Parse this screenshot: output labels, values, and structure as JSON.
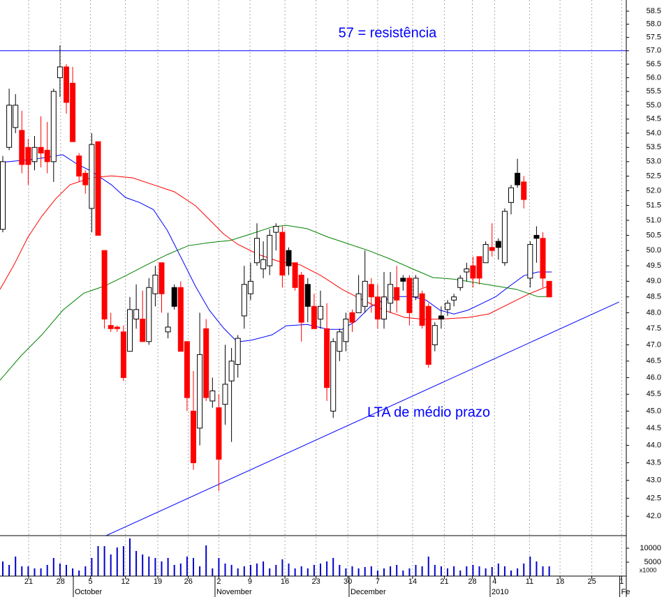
{
  "chart_data": {
    "type": "candlestick",
    "log_scale": true,
    "grid": true,
    "xlim": [
      -0.44,
      98.13
    ],
    "ylim": [
      41.47,
      58.93
    ],
    "yticks": [
      {
        "value": 42,
        "label": "42.0"
      },
      42.5,
      {
        "value": 43,
        "label": "43.0"
      },
      43.5,
      {
        "value": 44,
        "label": "44.0"
      },
      44.5,
      {
        "value": 45,
        "label": "45.0"
      },
      45.5,
      {
        "value": 46,
        "label": "46.0"
      },
      46.5,
      {
        "value": 47,
        "label": "47.0"
      },
      47.5,
      {
        "value": 48,
        "label": "48.0"
      },
      48.5,
      {
        "value": 49,
        "label": "49.0"
      },
      49.5,
      {
        "value": 50,
        "label": "50.0"
      },
      50.5,
      {
        "value": 51,
        "label": "51.0"
      },
      51.5,
      {
        "value": 52,
        "label": "52.0"
      },
      52.5,
      {
        "value": 53,
        "label": "53.0"
      },
      53.5,
      {
        "value": 54,
        "label": "54.0"
      },
      54.5,
      {
        "value": 55,
        "label": "55.0"
      },
      55.5,
      {
        "value": 56,
        "label": "56.0"
      },
      56.5,
      {
        "value": 57,
        "label": "57.0"
      },
      57.5,
      {
        "value": 58,
        "label": "58.0"
      },
      58.5
    ],
    "xticks": [
      {
        "value": 4.07,
        "label": "21"
      },
      {
        "value": 9.1,
        "label": "28"
      },
      {
        "value": 13.8,
        "label": "5"
      },
      {
        "value": 19.3,
        "label": "12"
      },
      {
        "value": 24.4,
        "label": "19"
      },
      {
        "value": 29.2,
        "label": "26"
      },
      {
        "value": 34.0,
        "label": "2"
      },
      {
        "value": 38.9,
        "label": "9"
      },
      {
        "value": 44.4,
        "label": "16"
      },
      {
        "value": 49.3,
        "label": "23"
      },
      {
        "value": 54.3,
        "label": "30"
      },
      {
        "value": 59.0,
        "label": "7"
      },
      {
        "value": 64.5,
        "label": "14"
      },
      {
        "value": 69.5,
        "label": "21"
      },
      {
        "value": 73.9,
        "label": "28"
      },
      {
        "value": 77.4,
        "label": "4"
      },
      {
        "value": 82.9,
        "label": "11"
      },
      {
        "value": 87.7,
        "label": "18"
      },
      {
        "value": 92.7,
        "label": "25"
      },
      {
        "value": 97.4,
        "label": "1"
      }
    ],
    "months": [
      {
        "value": 11.1,
        "label": "October"
      },
      {
        "value": 33.4,
        "label": "November"
      },
      {
        "value": 54.5,
        "label": "December"
      },
      {
        "value": 76.7,
        "label": "2010"
      },
      {
        "value": 97.1,
        "label": "Fe"
      }
    ],
    "up_color": "#ffffff",
    "down_color": "#ff0000",
    "down_above_prev_color": "#000000",
    "candles": [
      [
        50.7,
        53.2,
        50.6,
        53.0
      ],
      [
        53.5,
        55.6,
        53.4,
        55.0
      ],
      [
        54.2,
        55.4,
        54.0,
        55.0
      ],
      [
        54.1,
        54.8,
        52.6,
        52.9
      ],
      [
        53.5,
        53.8,
        52.2,
        52.9
      ],
      [
        53.0,
        53.9,
        52.7,
        53.5
      ],
      [
        53.5,
        54.6,
        52.8,
        53.3
      ],
      [
        53.4,
        54.4,
        52.6,
        53.0
      ],
      [
        53.0,
        55.6,
        52.3,
        55.5
      ],
      [
        56.0,
        57.2,
        55.3,
        56.4
      ],
      [
        56.4,
        56.5,
        54.7,
        55.1
      ],
      [
        55.8,
        56.4,
        53.7,
        53.7
      ],
      [
        53.2,
        53.3,
        52.3,
        52.5
      ],
      [
        52.6,
        52.7,
        51.9,
        52.2
      ],
      [
        51.4,
        54.0,
        50.6,
        53.6
      ],
      [
        53.7,
        53.7,
        50.5,
        50.5
      ],
      [
        50.0,
        50.0,
        47.5,
        47.8
      ],
      [
        47.6,
        48.0,
        47.4,
        47.5
      ],
      [
        47.55,
        47.6,
        47.4,
        47.5
      ],
      [
        47.4,
        47.6,
        45.9,
        46.0
      ],
      [
        46.8,
        48.5,
        46.8,
        48.1
      ],
      [
        47.8,
        48.9,
        47.5,
        48.1
      ],
      [
        47.8,
        48.7,
        47.1,
        47.1
      ],
      [
        47.1,
        49.1,
        47.0,
        48.8
      ],
      [
        48.6,
        49.5,
        48.2,
        49.2
      ],
      [
        49.6,
        49.6,
        48.0,
        48.6
      ],
      [
        47.4,
        48.0,
        47.2,
        47.55
      ],
      [
        48.8,
        48.9,
        48.1,
        48.2
      ],
      [
        48.8,
        49.0,
        46.8,
        46.8
      ],
      [
        47.1,
        47.1,
        45.0,
        45.4
      ],
      [
        45.0,
        46.2,
        43.3,
        43.5
      ],
      [
        44.5,
        48.0,
        44.0,
        46.7
      ],
      [
        47.5,
        47.8,
        45.3,
        45.4
      ],
      [
        45.3,
        46.0,
        45.1,
        45.6
      ],
      [
        45.1,
        45.5,
        42.7,
        43.6
      ],
      [
        45.2,
        47.0,
        44.6,
        45.8
      ],
      [
        45.9,
        46.9,
        44.1,
        46.5
      ],
      [
        46.4,
        47.3,
        46.0,
        47.2
      ],
      [
        47.9,
        49.5,
        47.5,
        48.9
      ],
      [
        48.6,
        49.6,
        48.4,
        49.0
      ],
      [
        49.6,
        50.9,
        49.5,
        50.4
      ],
      [
        49.4,
        50.3,
        49.1,
        49.7
      ],
      [
        49.5,
        50.7,
        49.2,
        50.5
      ],
      [
        50.6,
        50.9,
        50.0,
        50.8
      ],
      [
        50.6,
        50.8,
        48.8,
        49.2
      ],
      [
        50.0,
        50.1,
        49.2,
        49.5
      ],
      [
        49.6,
        49.6,
        48.7,
        48.8
      ],
      [
        49.2,
        49.3,
        47.1,
        47.7
      ],
      [
        48.9,
        49.1,
        47.7,
        48.2
      ],
      [
        48.2,
        48.6,
        47.5,
        47.5
      ],
      [
        47.8,
        48.7,
        47.5,
        48.2
      ],
      [
        47.5,
        48.3,
        45.3,
        45.7
      ],
      [
        45.0,
        47.2,
        44.8,
        47.1
      ],
      [
        46.8,
        47.5,
        46.5,
        47.4
      ],
      [
        47.1,
        48.0,
        46.8,
        47.8
      ],
      [
        48.0,
        48.1,
        47.4,
        47.7
      ],
      [
        48.0,
        49.2,
        48.0,
        48.6
      ],
      [
        48.2,
        50.0,
        48.0,
        49.0
      ],
      [
        48.9,
        49.1,
        48.0,
        48.5
      ],
      [
        48.5,
        48.9,
        47.5,
        47.8
      ],
      [
        47.8,
        49.3,
        47.5,
        48.5
      ],
      [
        48.3,
        49.3,
        48.0,
        48.9
      ],
      [
        48.8,
        49.5,
        48.0,
        48.4
      ],
      [
        49.1,
        49.2,
        48.7,
        49.0
      ],
      [
        49.1,
        49.2,
        47.6,
        48.0
      ],
      [
        48.5,
        49.2,
        48.4,
        49.1
      ],
      [
        48.6,
        48.7,
        47.5,
        47.6
      ],
      [
        48.2,
        48.3,
        46.3,
        46.4
      ],
      [
        47.0,
        47.7,
        46.8,
        47.6
      ],
      [
        47.9,
        48.2,
        47.5,
        47.8
      ],
      [
        48.1,
        48.4,
        47.9,
        48.3
      ],
      [
        48.4,
        48.6,
        48.2,
        48.5
      ],
      [
        48.8,
        49.2,
        48.7,
        49.1
      ],
      [
        49.3,
        49.6,
        49.0,
        49.4
      ],
      [
        49.5,
        49.8,
        48.8,
        49.1
      ],
      [
        49.8,
        49.8,
        48.9,
        49.1
      ],
      [
        49.6,
        50.3,
        49.6,
        50.2
      ],
      [
        50.1,
        50.9,
        49.8,
        50.0
      ],
      [
        50.3,
        50.4,
        49.7,
        50.1
      ],
      [
        49.6,
        51.4,
        49.5,
        51.3
      ],
      [
        51.6,
        52.2,
        51.2,
        52.1
      ],
      [
        52.6,
        53.1,
        52.1,
        52.2
      ],
      [
        52.3,
        52.5,
        51.4,
        51.7
      ],
      [
        49.1,
        50.3,
        48.8,
        50.2
      ],
      [
        50.5,
        50.8,
        49.6,
        50.4
      ],
      [
        50.4,
        50.6,
        48.8,
        49.1
      ],
      [
        49.0,
        49.0,
        48.5,
        48.5
      ]
    ],
    "series": [
      {
        "color": "#0000ff",
        "x": [
          -0.44,
          5.05,
          9.45,
          11.65,
          13.85,
          17.1,
          19.3,
          21.5,
          23.7,
          25.9,
          28.1,
          30.3,
          32.5,
          34.7,
          36.9,
          39.1,
          42.4,
          44.6,
          47.9,
          51.2,
          53.4,
          55.6,
          57.8,
          60.0,
          62.2,
          64.4,
          66.6,
          68.8,
          71.0,
          73.2,
          75.4,
          77.6,
          79.8,
          82.0,
          84.2,
          86.4
        ],
        "values": [
          52.97,
          53.09,
          53.24,
          52.92,
          52.68,
          52.2,
          51.77,
          51.6,
          51.36,
          50.66,
          49.75,
          48.85,
          48.08,
          47.53,
          47.09,
          47.14,
          47.31,
          47.59,
          47.63,
          47.48,
          47.48,
          47.74,
          48.18,
          48.4,
          48.51,
          48.51,
          48.4,
          48.08,
          47.96,
          48.08,
          48.29,
          48.51,
          48.85,
          49.18,
          49.3,
          49.3
        ]
      },
      {
        "color": "#ff0000",
        "x": [
          -0.44,
          1.76,
          3.96,
          6.15,
          8.35,
          10.55,
          13.85,
          17.14,
          20.44,
          23.74,
          27.03,
          30.33,
          32.53,
          34.73,
          36.92,
          40.22,
          43.52,
          46.81,
          50.11,
          53.41,
          56.7,
          60.0,
          63.3,
          66.59,
          69.89,
          73.19,
          76.48,
          79.78,
          83.08,
          86.37
        ],
        "values": [
          48.74,
          49.53,
          50.44,
          51.14,
          51.73,
          52.2,
          52.44,
          52.51,
          52.44,
          52.2,
          51.96,
          51.49,
          51.02,
          50.55,
          50.21,
          49.87,
          49.64,
          49.53,
          49.18,
          48.74,
          48.4,
          48.08,
          47.85,
          47.79,
          47.81,
          47.85,
          47.96,
          48.29,
          48.62,
          48.89
        ]
      },
      {
        "color": "#008000",
        "x": [
          -0.44,
          2.86,
          6.15,
          9.45,
          12.75,
          16.04,
          19.34,
          22.64,
          25.93,
          29.23,
          32.53,
          35.82,
          39.12,
          42.42,
          44.62,
          47.91,
          51.21,
          54.51,
          57.8,
          61.1,
          64.4,
          67.69,
          70.99,
          74.29,
          77.58,
          80.88,
          84.18,
          86.37
        ],
        "values": [
          45.92,
          46.66,
          47.31,
          48.08,
          48.62,
          48.85,
          49.18,
          49.53,
          49.87,
          50.16,
          50.26,
          50.33,
          50.55,
          50.78,
          50.83,
          50.72,
          50.44,
          50.21,
          49.98,
          49.71,
          49.41,
          49.12,
          49.07,
          48.96,
          48.85,
          48.74,
          48.51,
          48.51
        ]
      }
    ],
    "hline": {
      "value": 57,
      "color": "#0000ff",
      "label": "57 = resistência"
    },
    "trendline": {
      "x": [
        16.26,
        97.0
      ],
      "values": [
        41.47,
        48.34
      ],
      "color": "#0000ff",
      "label": "LTA de médio prazo"
    },
    "volume": {
      "color": "#0000cc",
      "ylim": [
        0,
        14000
      ],
      "yticks": [
        5000,
        10000
      ],
      "unit_label": "x1000",
      "values": [
        5250,
        4000,
        7000,
        3500,
        3500,
        2750,
        2750,
        4000,
        6500,
        4500,
        4000,
        2750,
        2000,
        3500,
        6500,
        10750,
        10750,
        7750,
        10250,
        10750,
        13500,
        9000,
        7750,
        7000,
        6500,
        5250,
        6500,
        4000,
        4500,
        7000,
        6500,
        3500,
        11000,
        2750,
        6500,
        4500,
        4000,
        2750,
        3500,
        4000,
        4500,
        5250,
        2750,
        4000,
        6000,
        4500,
        2750,
        3500,
        2750,
        4000,
        4500,
        5250,
        6500,
        4000,
        2750,
        3500,
        2750,
        3250,
        3500,
        2000,
        2750,
        3500,
        4000,
        2000,
        2750,
        4000,
        3500,
        7000,
        4000,
        3500,
        2750,
        3500,
        2000,
        3500,
        4000,
        3500,
        2750,
        3250,
        4500,
        3500,
        2000,
        2750,
        4500,
        7000,
        5250,
        3500,
        3500
      ]
    }
  }
}
